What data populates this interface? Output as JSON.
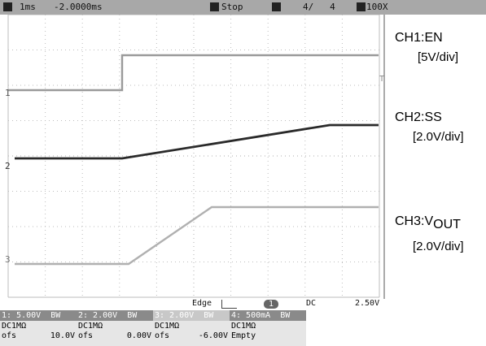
{
  "header": {
    "time_div": "1ms",
    "time_offset": "-2.0000ms",
    "run_state": "Stop",
    "acq_count": "4/   4",
    "zoom": "100X"
  },
  "channels": {
    "ch1": {
      "name": "CH1:EN",
      "scale": "[5V/div]"
    },
    "ch2": {
      "name": "CH2:SS",
      "scale": "[2.0V/div]"
    },
    "ch3": {
      "name_prefix": "CH3:V",
      "name_sub": "OUT",
      "scale": "[2.0V/div]"
    }
  },
  "markers": {
    "m1": "1",
    "m2": "2",
    "m3": "3",
    "trig_marker": "T"
  },
  "trigger": {
    "type": "Edge",
    "source": "1",
    "coupling": "DC",
    "level": "2.50V"
  },
  "footer": [
    {
      "hdr": "1: 5.00V  BW",
      "line1": "DC1MΩ",
      "ofs_label": "ofs",
      "ofs_value": "10.0V"
    },
    {
      "hdr": "2: 2.00V  BW",
      "line1": "DC1MΩ",
      "ofs_label": "ofs",
      "ofs_value": "0.00V"
    },
    {
      "hdr": "3: 2.00V  BW",
      "line1": "DC1MΩ",
      "ofs_label": "ofs",
      "ofs_value": "-6.00V"
    },
    {
      "hdr": "4: 500mA  BW",
      "line1": "DC1MΩ",
      "ofs_label": "",
      "ofs_value": "Empty"
    }
  ],
  "colors": {
    "ch1": "#9a9a9a",
    "ch2": "#2a2a2a",
    "ch3": "#b0b0b0",
    "grid": "#bdbdbd",
    "topbar": "#a8a8a8"
  }
}
